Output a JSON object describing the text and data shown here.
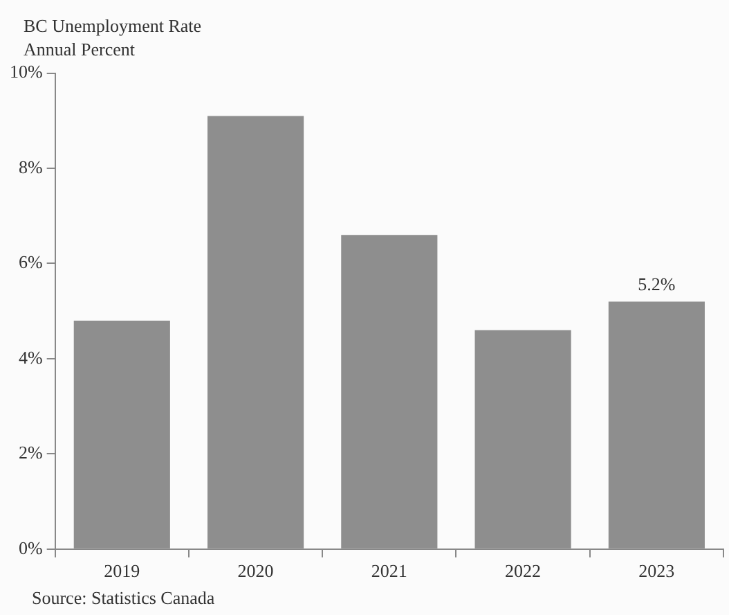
{
  "chart_data": {
    "type": "bar",
    "title": "BC Unemployment Rate",
    "subtitle": "Annual Percent",
    "categories": [
      "2019",
      "2020",
      "2021",
      "2022",
      "2023"
    ],
    "values": [
      4.8,
      9.1,
      6.6,
      4.6,
      5.2
    ],
    "color": "#8e8e8e",
    "value_labels": [
      null,
      null,
      null,
      null,
      "5.2%"
    ],
    "ylim": [
      0,
      10
    ],
    "yticks": [
      {
        "value": 0,
        "label": "0%"
      },
      {
        "value": 2,
        "label": "2%"
      },
      {
        "value": 4,
        "label": "4%"
      },
      {
        "value": 6,
        "label": "6%"
      },
      {
        "value": 8,
        "label": "8%"
      },
      {
        "value": 10,
        "label": "10%"
      }
    ],
    "grid": false,
    "legend": false,
    "annotations": [
      "Source: Statistics Canada"
    ]
  }
}
